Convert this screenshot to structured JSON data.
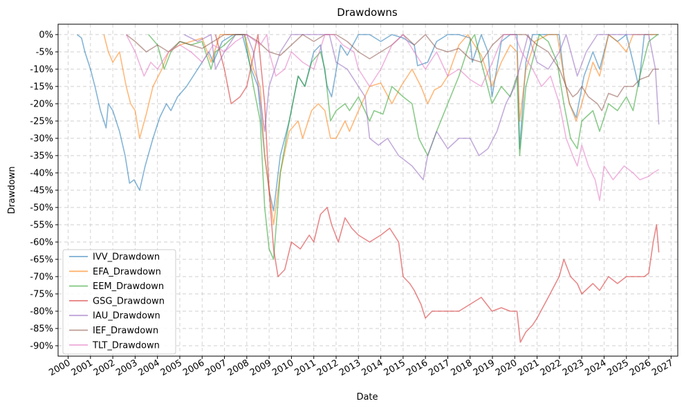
{
  "chart_data": {
    "type": "line",
    "title": "Drawdowns",
    "xlabel": "Date",
    "ylabel": "Drawdown",
    "xlim": [
      1999.55,
      2027.3
    ],
    "ylim": [
      -0.93,
      0.03
    ],
    "grid": true,
    "legend_position": "lower-left",
    "x_ticks": [
      2000,
      2001,
      2002,
      2003,
      2004,
      2005,
      2006,
      2007,
      2008,
      2009,
      2010,
      2011,
      2012,
      2013,
      2014,
      2015,
      2016,
      2017,
      2018,
      2019,
      2020,
      2021,
      2022,
      2023,
      2024,
      2025,
      2026,
      2027
    ],
    "y_ticks": [
      0,
      -0.05,
      -0.1,
      -0.15,
      -0.2,
      -0.25,
      -0.3,
      -0.35,
      -0.4,
      -0.45,
      -0.5,
      -0.55,
      -0.6,
      -0.65,
      -0.7,
      -0.75,
      -0.8,
      -0.85,
      -0.9
    ],
    "y_tick_labels": [
      "0%",
      "-5%",
      "-10%",
      "-15%",
      "-20%",
      "-25%",
      "-30%",
      "-35%",
      "-40%",
      "-45%",
      "-50%",
      "-55%",
      "-60%",
      "-65%",
      "-70%",
      "-75%",
      "-80%",
      "-85%",
      "-90%"
    ],
    "series": [
      {
        "name": "IVV_Drawdown",
        "color": "#1f77b4",
        "x": [
          2000.4,
          2000.6,
          2000.75,
          2001.0,
          2001.2,
          2001.45,
          2001.7,
          2001.8,
          2002.0,
          2002.3,
          2002.55,
          2002.75,
          2002.95,
          2003.2,
          2003.45,
          2003.8,
          2004.1,
          2004.4,
          2004.6,
          2004.9,
          2005.3,
          2005.8,
          2006.3,
          2006.5,
          2006.9,
          2007.4,
          2007.8,
          2008.2,
          2008.5,
          2008.8,
          2009.0,
          2009.2,
          2009.5,
          2009.9,
          2010.3,
          2010.6,
          2011.0,
          2011.3,
          2011.6,
          2011.8,
          2012.2,
          2012.5,
          2013.0,
          2013.5,
          2014.0,
          2014.5,
          2015.0,
          2015.5,
          2015.65,
          2016.1,
          2016.5,
          2017.0,
          2017.5,
          2018.0,
          2018.1,
          2018.5,
          2018.8,
          2018.98,
          2019.4,
          2019.8,
          2020.1,
          2020.22,
          2020.5,
          2020.8,
          2021.0,
          2021.5,
          2021.99,
          2022.2,
          2022.45,
          2022.75,
          2023.1,
          2023.5,
          2023.8,
          2024.2,
          2024.6,
          2025.0,
          2025.3,
          2025.55,
          2025.8,
          2026.2,
          2026.45
        ],
        "y": [
          0,
          -0.01,
          -0.05,
          -0.1,
          -0.15,
          -0.22,
          -0.27,
          -0.2,
          -0.22,
          -0.28,
          -0.35,
          -0.43,
          -0.42,
          -0.45,
          -0.38,
          -0.3,
          -0.24,
          -0.2,
          -0.22,
          -0.18,
          -0.15,
          -0.1,
          -0.05,
          -0.08,
          -0.02,
          0,
          0,
          -0.1,
          -0.15,
          -0.35,
          -0.45,
          -0.51,
          -0.35,
          -0.25,
          -0.12,
          -0.15,
          -0.05,
          -0.03,
          -0.15,
          -0.18,
          -0.03,
          -0.06,
          0,
          0,
          -0.02,
          0,
          -0.01,
          -0.03,
          -0.09,
          -0.08,
          -0.02,
          0,
          0,
          -0.01,
          -0.08,
          0,
          -0.05,
          -0.18,
          -0.02,
          0,
          0,
          -0.33,
          -0.08,
          0,
          0,
          0,
          0,
          -0.12,
          -0.2,
          -0.24,
          -0.12,
          -0.05,
          -0.1,
          0,
          -0.02,
          0,
          -0.08,
          -0.15,
          0,
          0,
          0
        ]
      },
      {
        "name": "EFA_Drawdown",
        "color": "#ff7f0e",
        "x": [
          2001.6,
          2001.8,
          2002.0,
          2002.3,
          2002.6,
          2002.8,
          2003.0,
          2003.2,
          2003.5,
          2003.8,
          2004.2,
          2004.5,
          2005.0,
          2005.5,
          2006.0,
          2006.4,
          2006.8,
          2007.4,
          2007.9,
          2008.3,
          2008.6,
          2008.8,
          2009.0,
          2009.2,
          2009.5,
          2009.9,
          2010.3,
          2010.5,
          2010.9,
          2011.2,
          2011.5,
          2011.75,
          2012.0,
          2012.4,
          2012.6,
          2013.0,
          2013.5,
          2014.0,
          2014.5,
          2014.9,
          2015.4,
          2015.8,
          2016.1,
          2016.4,
          2016.7,
          2017.0,
          2017.5,
          2017.9,
          2018.1,
          2018.5,
          2018.98,
          2019.4,
          2019.8,
          2020.1,
          2020.22,
          2020.5,
          2020.9,
          2021.5,
          2021.9,
          2022.2,
          2022.45,
          2022.75,
          2023.0,
          2023.5,
          2023.8,
          2024.2,
          2024.6,
          2025.0,
          2025.3,
          2025.6,
          2026.0,
          2026.4
        ],
        "y": [
          0,
          -0.05,
          -0.08,
          -0.05,
          -0.15,
          -0.2,
          -0.22,
          -0.3,
          -0.23,
          -0.15,
          -0.1,
          -0.05,
          -0.03,
          -0.02,
          -0.01,
          -0.08,
          0,
          0,
          0,
          -0.1,
          -0.15,
          -0.35,
          -0.45,
          -0.55,
          -0.4,
          -0.28,
          -0.25,
          -0.3,
          -0.22,
          -0.2,
          -0.22,
          -0.3,
          -0.3,
          -0.25,
          -0.28,
          -0.22,
          -0.15,
          -0.14,
          -0.2,
          -0.15,
          -0.1,
          -0.15,
          -0.2,
          -0.16,
          -0.15,
          -0.12,
          -0.03,
          0,
          -0.02,
          -0.06,
          -0.15,
          -0.08,
          -0.03,
          -0.05,
          -0.25,
          -0.1,
          -0.02,
          0,
          0,
          -0.12,
          -0.2,
          -0.25,
          -0.2,
          -0.08,
          -0.12,
          0,
          -0.02,
          -0.05,
          0,
          0,
          0,
          0
        ]
      },
      {
        "name": "EEM_Drawdown",
        "color": "#2ca02c",
        "x": [
          2003.6,
          2004.0,
          2004.3,
          2004.6,
          2005.0,
          2005.5,
          2006.0,
          2006.4,
          2006.6,
          2007.0,
          2007.5,
          2007.9,
          2008.3,
          2008.6,
          2008.8,
          2009.0,
          2009.2,
          2009.5,
          2009.9,
          2010.3,
          2010.6,
          2010.9,
          2011.3,
          2011.5,
          2011.75,
          2012.0,
          2012.4,
          2012.6,
          2013.0,
          2013.5,
          2013.7,
          2014.1,
          2014.5,
          2015.0,
          2015.4,
          2015.7,
          2016.1,
          2016.5,
          2017.0,
          2017.5,
          2018.0,
          2018.2,
          2018.5,
          2018.98,
          2019.4,
          2019.8,
          2020.1,
          2020.22,
          2020.5,
          2020.9,
          2021.1,
          2021.5,
          2021.9,
          2022.2,
          2022.5,
          2022.8,
          2023.0,
          2023.5,
          2023.8,
          2024.2,
          2024.6,
          2025.0,
          2025.3,
          2025.6,
          2026.0,
          2026.4
        ],
        "y": [
          0,
          -0.03,
          -0.1,
          -0.05,
          -0.02,
          -0.03,
          -0.02,
          -0.1,
          -0.05,
          -0.03,
          0,
          0,
          -0.15,
          -0.25,
          -0.5,
          -0.62,
          -0.65,
          -0.4,
          -0.25,
          -0.12,
          -0.15,
          -0.08,
          -0.05,
          -0.1,
          -0.25,
          -0.22,
          -0.2,
          -0.22,
          -0.18,
          -0.25,
          -0.22,
          -0.23,
          -0.15,
          -0.18,
          -0.2,
          -0.3,
          -0.35,
          -0.28,
          -0.2,
          -0.12,
          -0.02,
          0,
          -0.08,
          -0.2,
          -0.15,
          -0.18,
          -0.12,
          -0.35,
          -0.15,
          -0.05,
          0,
          -0.02,
          -0.08,
          -0.2,
          -0.3,
          -0.33,
          -0.25,
          -0.22,
          -0.28,
          -0.2,
          -0.22,
          -0.18,
          -0.22,
          -0.12,
          -0.02,
          0
        ]
      },
      {
        "name": "GSG_Drawdown",
        "color": "#d62728",
        "x": [
          2006.6,
          2007.0,
          2007.3,
          2007.7,
          2008.0,
          2008.5,
          2008.8,
          2009.0,
          2009.2,
          2009.4,
          2009.7,
          2010.0,
          2010.4,
          2010.8,
          2011.0,
          2011.3,
          2011.6,
          2011.8,
          2012.1,
          2012.4,
          2012.7,
          2013.0,
          2013.5,
          2014.0,
          2014.4,
          2014.8,
          2015.0,
          2015.3,
          2015.5,
          2015.8,
          2016.0,
          2016.3,
          2016.6,
          2017.0,
          2017.5,
          2018.0,
          2018.5,
          2018.98,
          2019.4,
          2019.8,
          2020.1,
          2020.25,
          2020.5,
          2020.8,
          2021.0,
          2021.5,
          2021.99,
          2022.2,
          2022.5,
          2022.8,
          2023.0,
          2023.5,
          2023.8,
          2024.2,
          2024.6,
          2025.0,
          2025.4,
          2025.8,
          2026.0,
          2026.2,
          2026.35,
          2026.45
        ],
        "y": [
          0,
          -0.1,
          -0.2,
          -0.18,
          -0.15,
          0,
          -0.2,
          -0.45,
          -0.62,
          -0.7,
          -0.68,
          -0.6,
          -0.62,
          -0.58,
          -0.6,
          -0.52,
          -0.5,
          -0.55,
          -0.6,
          -0.53,
          -0.56,
          -0.58,
          -0.6,
          -0.58,
          -0.56,
          -0.6,
          -0.7,
          -0.72,
          -0.74,
          -0.78,
          -0.82,
          -0.8,
          -0.8,
          -0.8,
          -0.8,
          -0.78,
          -0.76,
          -0.8,
          -0.79,
          -0.8,
          -0.8,
          -0.89,
          -0.86,
          -0.84,
          -0.82,
          -0.76,
          -0.7,
          -0.65,
          -0.7,
          -0.72,
          -0.75,
          -0.72,
          -0.74,
          -0.7,
          -0.72,
          -0.7,
          -0.7,
          -0.7,
          -0.69,
          -0.6,
          -0.55,
          -0.63
        ]
      },
      {
        "name": "IAU_Drawdown",
        "color": "#9467bd",
        "x": [
          2005.2,
          2005.8,
          2006.4,
          2006.6,
          2007.0,
          2007.5,
          2008.0,
          2008.3,
          2008.8,
          2009.0,
          2009.5,
          2010.0,
          2010.5,
          2011.0,
          2011.7,
          2012.0,
          2012.5,
          2013.0,
          2013.3,
          2013.5,
          2013.9,
          2014.3,
          2014.8,
          2015.4,
          2015.9,
          2016.1,
          2016.5,
          2017.0,
          2017.5,
          2018.0,
          2018.4,
          2018.8,
          2019.2,
          2019.6,
          2020.0,
          2020.6,
          2021.0,
          2021.5,
          2022.0,
          2022.3,
          2022.8,
          2023.2,
          2023.7,
          2024.2,
          2024.6,
          2025.0,
          2025.5,
          2026.0,
          2026.3,
          2026.45
        ],
        "y": [
          0,
          -0.02,
          0,
          -0.1,
          -0.05,
          0,
          0,
          -0.05,
          -0.28,
          -0.15,
          -0.05,
          0,
          0,
          0,
          0,
          -0.08,
          -0.1,
          -0.15,
          -0.18,
          -0.3,
          -0.32,
          -0.3,
          -0.35,
          -0.38,
          -0.42,
          -0.35,
          -0.28,
          -0.33,
          -0.3,
          -0.3,
          -0.35,
          -0.33,
          -0.28,
          -0.2,
          -0.15,
          0,
          -0.08,
          -0.1,
          -0.05,
          0,
          -0.12,
          -0.05,
          0,
          0,
          0,
          0,
          0,
          0,
          -0.1,
          -0.26
        ]
      },
      {
        "name": "IEF_Drawdown",
        "color": "#8c564b",
        "x": [
          2002.6,
          2003.0,
          2003.5,
          2004.0,
          2004.5,
          2005.0,
          2005.5,
          2006.0,
          2006.5,
          2007.0,
          2007.5,
          2008.0,
          2008.5,
          2009.0,
          2009.5,
          2010.0,
          2010.5,
          2011.0,
          2011.5,
          2012.0,
          2012.5,
          2013.0,
          2013.5,
          2014.0,
          2014.5,
          2015.0,
          2015.5,
          2016.0,
          2016.5,
          2017.0,
          2017.5,
          2018.0,
          2018.5,
          2019.0,
          2019.5,
          2020.0,
          2020.5,
          2021.0,
          2021.5,
          2022.0,
          2022.3,
          2022.6,
          2022.8,
          2023.0,
          2023.3,
          2023.7,
          2023.9,
          2024.2,
          2024.6,
          2024.9,
          2025.3,
          2025.6,
          2026.0,
          2026.2,
          2026.45
        ],
        "y": [
          0,
          -0.02,
          -0.05,
          -0.03,
          -0.05,
          -0.02,
          -0.03,
          -0.04,
          -0.02,
          0,
          0,
          0,
          -0.02,
          -0.05,
          -0.06,
          -0.03,
          0,
          -0.02,
          0,
          0,
          -0.02,
          -0.05,
          -0.07,
          -0.05,
          -0.03,
          0,
          -0.03,
          0,
          -0.04,
          -0.05,
          -0.04,
          -0.07,
          -0.08,
          -0.03,
          0,
          0,
          0,
          -0.03,
          -0.05,
          -0.1,
          -0.15,
          -0.18,
          -0.17,
          -0.15,
          -0.18,
          -0.2,
          -0.22,
          -0.17,
          -0.18,
          -0.15,
          -0.15,
          -0.13,
          -0.12,
          -0.1,
          -0.1
        ]
      },
      {
        "name": "TLT_Drawdown",
        "color": "#e377c2",
        "x": [
          2002.6,
          2003.0,
          2003.4,
          2003.7,
          2004.0,
          2004.5,
          2005.0,
          2005.5,
          2006.0,
          2006.5,
          2007.0,
          2007.5,
          2008.0,
          2008.6,
          2008.9,
          2009.0,
          2009.3,
          2009.7,
          2010.0,
          2010.5,
          2011.0,
          2011.5,
          2011.9,
          2012.3,
          2012.8,
          2013.0,
          2013.5,
          2014.0,
          2014.5,
          2015.0,
          2015.5,
          2016.0,
          2016.5,
          2017.0,
          2017.5,
          2018.0,
          2018.5,
          2019.0,
          2019.5,
          2020.0,
          2020.3,
          2020.8,
          2021.2,
          2021.6,
          2022.0,
          2022.3,
          2022.6,
          2022.8,
          2023.0,
          2023.3,
          2023.6,
          2023.8,
          2024.0,
          2024.4,
          2024.9,
          2025.3,
          2025.6,
          2026.0,
          2026.2,
          2026.45
        ],
        "y": [
          0,
          -0.05,
          -0.12,
          -0.08,
          -0.1,
          -0.05,
          -0.03,
          -0.05,
          -0.08,
          -0.03,
          -0.05,
          -0.02,
          0,
          -0.03,
          0,
          -0.05,
          -0.12,
          -0.1,
          -0.05,
          -0.08,
          -0.1,
          0,
          0,
          -0.03,
          -0.05,
          -0.1,
          -0.15,
          -0.1,
          -0.03,
          0,
          -0.05,
          -0.1,
          -0.05,
          -0.12,
          -0.1,
          -0.13,
          -0.15,
          -0.08,
          0,
          0,
          -0.05,
          -0.1,
          -0.15,
          -0.12,
          -0.2,
          -0.3,
          -0.35,
          -0.38,
          -0.32,
          -0.38,
          -0.42,
          -0.48,
          -0.38,
          -0.42,
          -0.38,
          -0.4,
          -0.42,
          -0.41,
          -0.4,
          -0.39
        ]
      }
    ]
  }
}
